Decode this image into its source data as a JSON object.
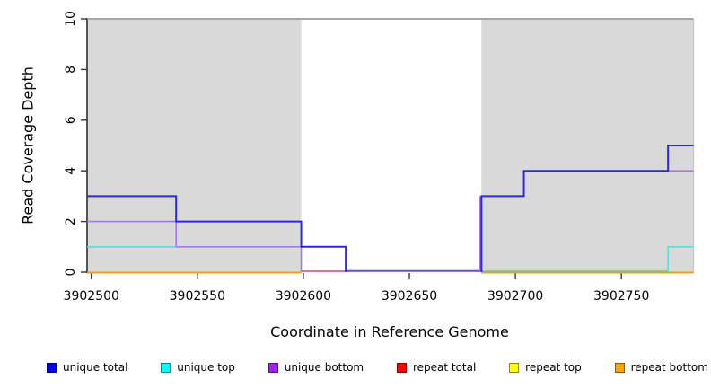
{
  "chart_data": {
    "type": "line",
    "subtype": "step-coverage",
    "title": "",
    "xlabel": "Coordinate in Reference Genome",
    "ylabel": "Read Coverage Depth",
    "xlim": [
      3902498,
      3902784
    ],
    "ylim": [
      0,
      10
    ],
    "x_ticks": [
      3902500,
      3902550,
      3902600,
      3902650,
      3902700,
      3902750
    ],
    "y_ticks": [
      0,
      2,
      4,
      6,
      8,
      10
    ],
    "grid": false,
    "axis_color": "#2e2e2e",
    "tick_color": "#333333",
    "shaded_regions": [
      {
        "start": 3902498,
        "end": 3902599,
        "color": "#d9d9d9"
      },
      {
        "start": 3902684,
        "end": 3902784,
        "color": "#d9d9d9"
      }
    ],
    "top_boundary_line": {
      "depth": 10,
      "color": "#9c9c9c"
    },
    "series": [
      {
        "name": "unique total",
        "color": "#0000EE",
        "steps": [
          [
            3902498,
            3
          ],
          [
            3902540,
            2
          ],
          [
            3902599,
            1
          ],
          [
            3902620,
            0
          ],
          [
            3902684,
            3
          ],
          [
            3902704,
            4
          ],
          [
            3902772,
            5
          ]
        ],
        "end": 3902784
      },
      {
        "name": "unique top",
        "color": "#00FFFF",
        "steps": [
          [
            3902498,
            1
          ],
          [
            3902620,
            0
          ],
          [
            3902772,
            1
          ]
        ],
        "end": 3902784
      },
      {
        "name": "unique bottom",
        "color": "#A020F0",
        "steps": [
          [
            3902498,
            2
          ],
          [
            3902540,
            1
          ],
          [
            3902599,
            0
          ],
          [
            3902684,
            3
          ],
          [
            3902704,
            4
          ]
        ],
        "end": 3902784
      },
      {
        "name": "repeat total",
        "color": "#FF0000",
        "steps": [
          [
            3902498,
            0
          ]
        ],
        "end": 3902784
      },
      {
        "name": "repeat top",
        "color": "#FFFF00",
        "steps": [
          [
            3902498,
            0
          ]
        ],
        "end": 3902784
      },
      {
        "name": "repeat bottom",
        "color": "#FFA500",
        "steps": [
          [
            3902498,
            0
          ]
        ],
        "end": 3902784
      }
    ],
    "visible_segments": [
      {
        "name": "top-boundary-line",
        "color": "#9c9c9c",
        "width": 1.8,
        "points": [
          [
            3902498,
            10
          ],
          [
            3902784,
            10
          ]
        ]
      },
      {
        "name": "repeat-bottom-left",
        "color": "#ff9800",
        "width": 2.0,
        "dy": 0.5,
        "points": [
          [
            3902498,
            0
          ],
          [
            3902599,
            0
          ]
        ]
      },
      {
        "name": "repeat-bottom-right",
        "color": "#ff9800",
        "width": 2.0,
        "dy": 0.5,
        "points": [
          [
            3902684,
            0
          ],
          [
            3902784,
            0
          ]
        ]
      },
      {
        "name": "unique-top-zero-overlap",
        "color": "#85c285",
        "width": 1.8,
        "dy": -1.0,
        "points": [
          [
            3902684,
            0
          ],
          [
            3902772,
            0
          ]
        ]
      },
      {
        "name": "repeat-total-zero",
        "color": "#e0607c",
        "width": 1.8,
        "dy": -1.0,
        "points": [
          [
            3902599,
            0
          ],
          [
            3902620,
            0
          ]
        ]
      },
      {
        "name": "unique-total-zero-overlap",
        "color": "#5a50e8",
        "width": 2.0,
        "dy": -1.2,
        "points": [
          [
            3902620,
            0
          ],
          [
            3902684,
            0
          ]
        ]
      },
      {
        "name": "unique-bottom-left",
        "color": "#a478e8",
        "width": 1.6,
        "points": [
          [
            3902498,
            2
          ],
          [
            3902540,
            2
          ],
          [
            3902540,
            1
          ],
          [
            3902599,
            1
          ],
          [
            3902599,
            0
          ]
        ]
      },
      {
        "name": "unique-bottom-rise",
        "color": "#a478e8",
        "width": 1.6,
        "dx": -1.5,
        "points": [
          [
            3902684,
            0
          ],
          [
            3902684,
            3
          ]
        ]
      },
      {
        "name": "unique-bottom-right",
        "color": "#a478e8",
        "width": 1.6,
        "points": [
          [
            3902772,
            4
          ],
          [
            3902784,
            4
          ]
        ]
      },
      {
        "name": "unique-top-left",
        "color": "#57dede",
        "width": 1.6,
        "points": [
          [
            3902498,
            1
          ],
          [
            3902540,
            1
          ]
        ]
      },
      {
        "name": "unique-top-right",
        "color": "#57dede",
        "width": 1.6,
        "points": [
          [
            3902772,
            0
          ],
          [
            3902772,
            1
          ],
          [
            3902784,
            1
          ]
        ]
      },
      {
        "name": "unique-total-left",
        "color": "#2b28e0",
        "width": 2.0,
        "points": [
          [
            3902498,
            3
          ],
          [
            3902540,
            3
          ],
          [
            3902540,
            2
          ],
          [
            3902599,
            2
          ],
          [
            3902599,
            1
          ],
          [
            3902620,
            1
          ],
          [
            3902620,
            0
          ]
        ]
      },
      {
        "name": "unique-total-right",
        "color": "#2b28e0",
        "width": 2.0,
        "points": [
          [
            3902684,
            0
          ],
          [
            3902684,
            3
          ],
          [
            3902704,
            3
          ],
          [
            3902704,
            4
          ],
          [
            3902772,
            4
          ],
          [
            3902772,
            5
          ],
          [
            3902784,
            5
          ]
        ]
      }
    ],
    "legend": {
      "position": "bottom",
      "items": [
        {
          "label": "unique total",
          "color": "#0000EE"
        },
        {
          "label": "unique top",
          "color": "#00FFFF"
        },
        {
          "label": "unique bottom",
          "color": "#A020F0"
        },
        {
          "label": "repeat total",
          "color": "#FF0000"
        },
        {
          "label": "repeat top",
          "color": "#FFFF00"
        },
        {
          "label": "repeat bottom",
          "color": "#FFA500"
        }
      ]
    }
  }
}
